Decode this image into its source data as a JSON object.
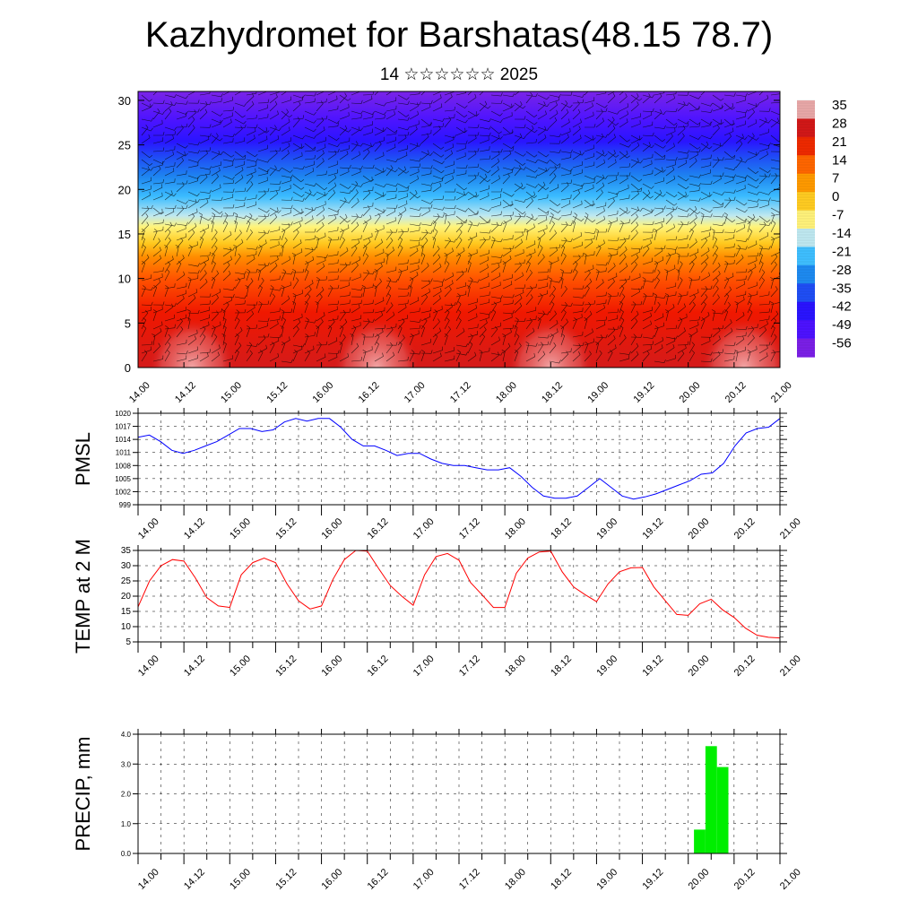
{
  "title": "Kazhydromet for Barshatas(48.15 78.7)",
  "subtitle": "14 ☆☆☆☆☆☆ 2025",
  "time_labels": [
    "14.00",
    "14.12",
    "15.00",
    "15.12",
    "16.00",
    "16.12",
    "17.00",
    "17.12",
    "18.00",
    "18.12",
    "19.00",
    "19.12",
    "20.00",
    "20.12",
    "21.00"
  ],
  "chart_data": [
    {
      "type": "heatmap",
      "panel": "vertical-cross-section",
      "x": [
        "14.00",
        "14.12",
        "15.00",
        "15.12",
        "16.00",
        "16.12",
        "17.00",
        "17.12",
        "18.00",
        "18.12",
        "19.00",
        "19.12",
        "20.00",
        "20.12",
        "21.00"
      ],
      "y_ticks": [
        0,
        5,
        10,
        15,
        20,
        25,
        30
      ],
      "ylim": [
        0,
        31
      ],
      "colorbar_labels": [
        "35",
        "28",
        "21",
        "14",
        "7",
        "0",
        "-7",
        "-14",
        "-21",
        "-28",
        "-35",
        "-42",
        "-49",
        "-56"
      ],
      "colorbar_colors": [
        "#e8a8a8",
        "#d21818",
        "#ee2a00",
        "#ff6600",
        "#ff9a00",
        "#ffcc22",
        "#fff27a",
        "#bfe8f0",
        "#3fbfff",
        "#1e8af0",
        "#1f4ef5",
        "#2a14ff",
        "#4d12ff",
        "#7a1fe6"
      ],
      "overlay": "wind barbs"
    },
    {
      "type": "line",
      "ylabel": "PMSL",
      "y_ticks": [
        999,
        1002,
        1005,
        1008,
        1011,
        1014,
        1017,
        1020
      ],
      "ylim": [
        999,
        1020
      ],
      "color": "#0000ff",
      "values": [
        1014.5,
        1015,
        1013.5,
        1011.5,
        1010.8,
        1011.5,
        1012.5,
        1013.5,
        1015,
        1016.5,
        1016.5,
        1015.8,
        1016.2,
        1018,
        1018.8,
        1018.2,
        1018.8,
        1018.8,
        1016.8,
        1014,
        1012.5,
        1012.5,
        1011.5,
        1010.3,
        1010.8,
        1010.8,
        1009.5,
        1008.5,
        1008,
        1008,
        1007.5,
        1007,
        1007,
        1007.5,
        1005.5,
        1003,
        1001,
        1000.5,
        1000.5,
        1001,
        1003,
        1005,
        1003,
        1001,
        1000.3,
        1000.8,
        1001.5,
        1002.5,
        1003.5,
        1004.5,
        1006,
        1006.3,
        1008.5,
        1012.5,
        1015.5,
        1016.5,
        1016.8,
        1018.8
      ]
    },
    {
      "type": "line",
      "ylabel": "TEMP at 2 M",
      "y_ticks": [
        5,
        10,
        15,
        20,
        25,
        30,
        35
      ],
      "ylim": [
        5,
        35
      ],
      "color": "#ff0000",
      "values": [
        16.5,
        25,
        30,
        32,
        31.5,
        26,
        19.5,
        16.8,
        16.3,
        27,
        31,
        32.5,
        31,
        24,
        18.5,
        15.8,
        16.8,
        25.5,
        32,
        35,
        34.8,
        29,
        23.5,
        20,
        17,
        27,
        33,
        34,
        31.8,
        24.5,
        20.5,
        16.3,
        16.3,
        27.5,
        32.5,
        34.5,
        34.8,
        28,
        23,
        20.5,
        18.2,
        24,
        28,
        29.3,
        29.4,
        23,
        18.5,
        14,
        13.7,
        17.5,
        19,
        15.5,
        13,
        9.5,
        7.2,
        6.5,
        6.3
      ]
    },
    {
      "type": "bar",
      "ylabel": "PRECIP, mm",
      "y_ticks": [
        "0.0",
        "1.0",
        "2.0",
        "3.0",
        "4.0"
      ],
      "ylim": [
        0,
        4
      ],
      "color": "#00ee00",
      "bars": [
        {
          "x": "20.00+3h",
          "value": 0.8
        },
        {
          "x": "20.00+6h",
          "value": 3.6
        },
        {
          "x": "20.00+9h",
          "value": 2.9
        }
      ]
    }
  ]
}
